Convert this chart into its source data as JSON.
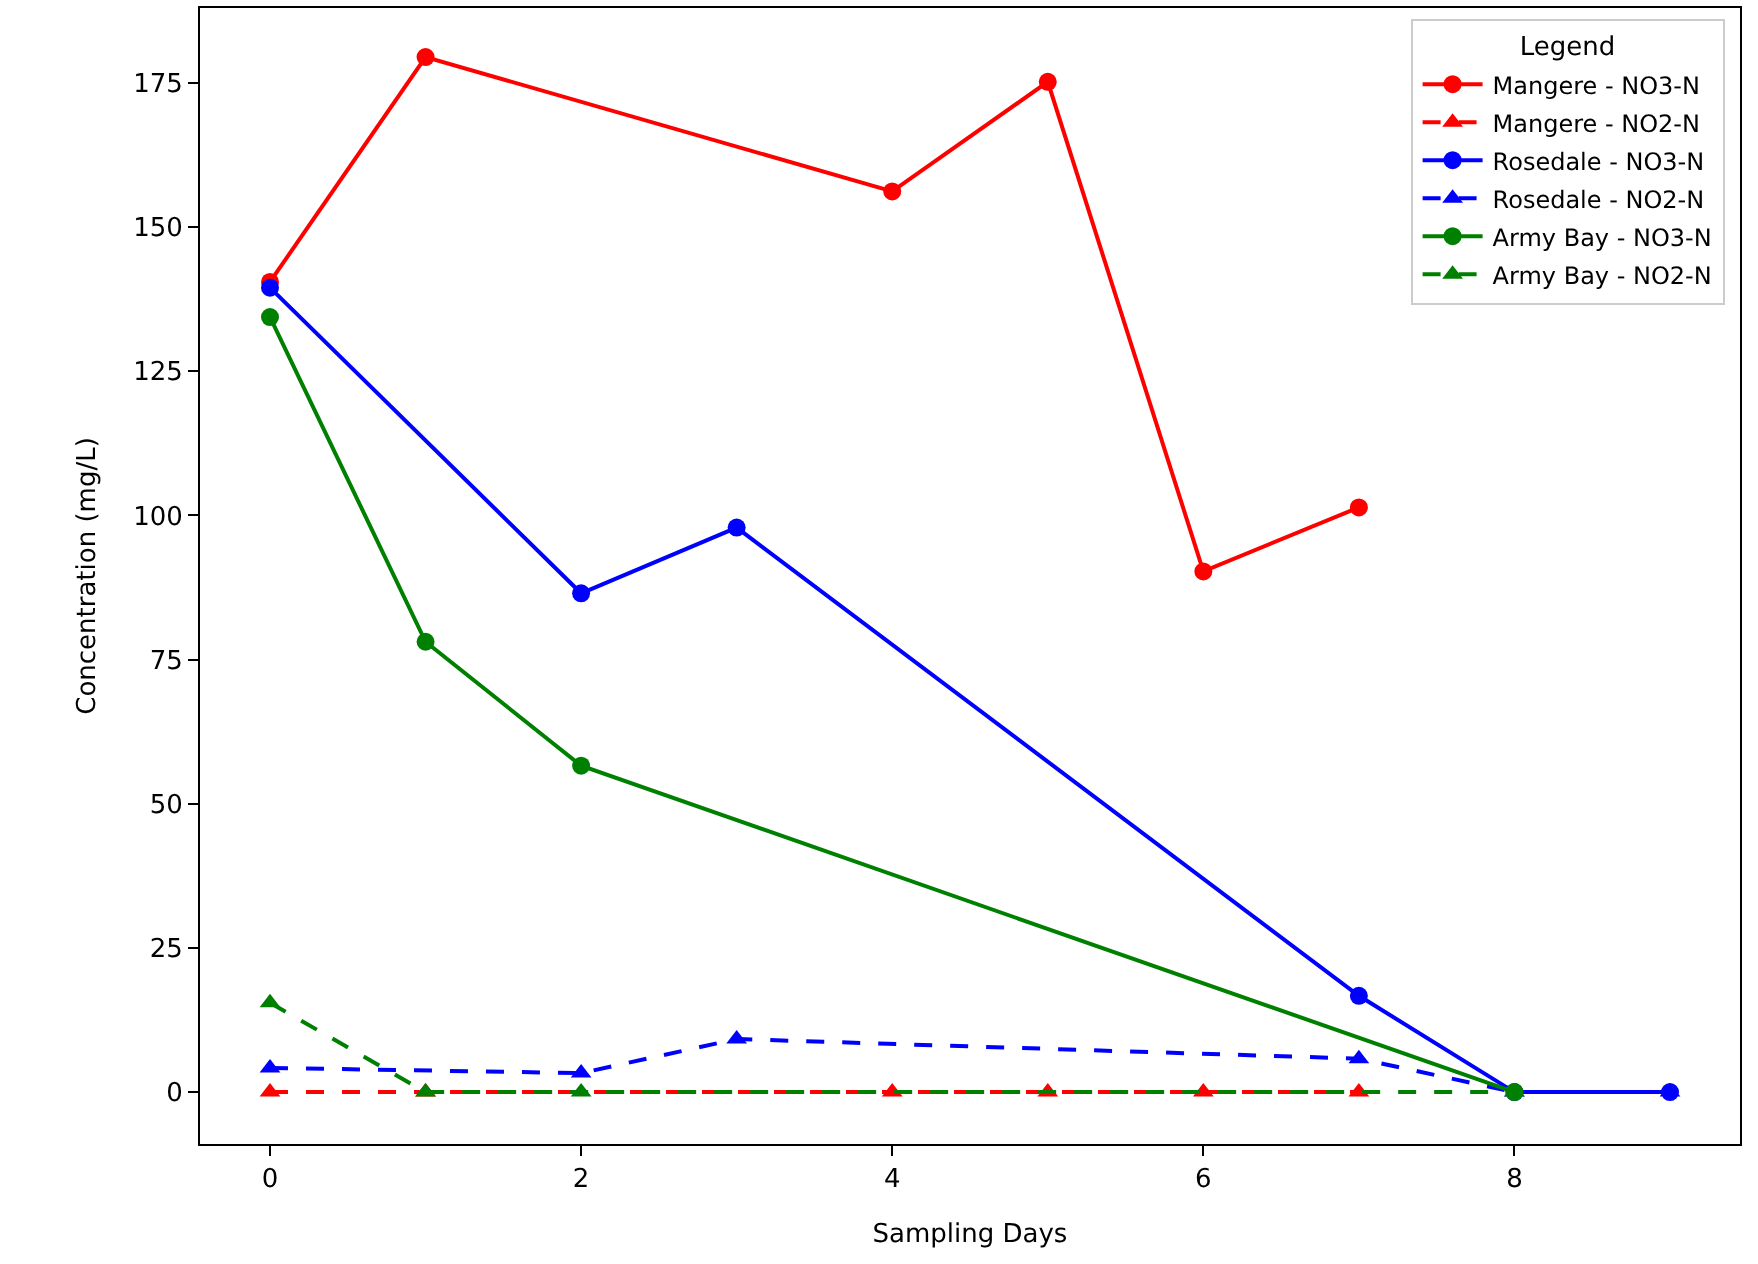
{
  "chart_data": {
    "type": "line",
    "xlabel": "Sampling Days",
    "ylabel": "Concentration (mg/L)",
    "legend_title": "Legend",
    "legend": "top right",
    "xlim": [
      -0.45,
      9.45
    ],
    "xticks": [
      0,
      2,
      4,
      6,
      8
    ],
    "ylim": [
      -9,
      188
    ],
    "yticks": [
      0,
      25,
      50,
      75,
      100,
      125,
      150,
      175
    ],
    "series": [
      {
        "name": "Mangere - NO3-N",
        "color": "#ff0000",
        "x": [
          0,
          1,
          4,
          5,
          6,
          7
        ],
        "values": [
          140.5,
          179.5,
          156.2,
          175.2,
          90.3,
          101.4
        ],
        "marker": "circle",
        "line_style": "solid"
      },
      {
        "name": "Mangere - NO2-N",
        "color": "#ff0000",
        "x": [
          0,
          1,
          4,
          5,
          6,
          7
        ],
        "values": [
          0,
          0,
          0,
          0,
          0,
          0
        ],
        "marker": "triangle",
        "line_style": "dashed"
      },
      {
        "name": "Rosedale - NO3-N",
        "color": "#0000ff",
        "x": [
          0,
          2,
          3,
          7,
          8,
          9
        ],
        "values": [
          139.5,
          86.5,
          97.9,
          16.7,
          0,
          0
        ],
        "marker": "circle",
        "line_style": "solid"
      },
      {
        "name": "Rosedale - NO2-N",
        "color": "#0000ff",
        "x": [
          0,
          2,
          3,
          7,
          8,
          9
        ],
        "values": [
          4.2,
          3.3,
          9.2,
          5.8,
          0,
          0
        ],
        "marker": "triangle",
        "line_style": "dashed"
      },
      {
        "name": "Army Bay - NO3-N",
        "color": "#008000",
        "x": [
          0,
          1,
          2,
          8
        ],
        "values": [
          134.4,
          78.1,
          56.6,
          0
        ],
        "marker": "circle",
        "line_style": "solid"
      },
      {
        "name": "Army Bay - NO2-N",
        "color": "#008000",
        "x": [
          0,
          1,
          2,
          8
        ],
        "values": [
          15.5,
          0,
          0,
          0
        ],
        "marker": "triangle",
        "line_style": "dashed"
      }
    ]
  }
}
